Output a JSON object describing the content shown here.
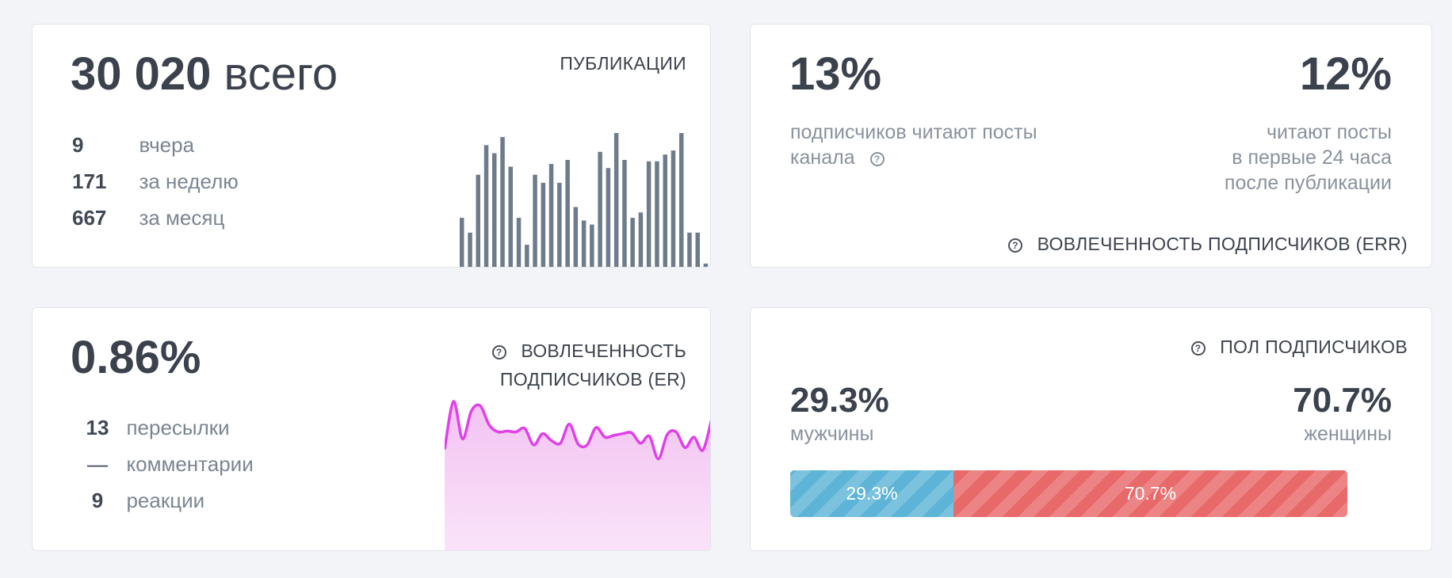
{
  "publications": {
    "total_value": "30 020",
    "total_suffix": "всего",
    "title": "ПУБЛИКАЦИИ",
    "stats": [
      {
        "value": "9",
        "label": "вчера"
      },
      {
        "value": "171",
        "label": "за неделю"
      },
      {
        "value": "667",
        "label": "за месяц"
      }
    ],
    "bar_color": "#6e7b8c"
  },
  "err": {
    "left_value": "13%",
    "left_text_line1": "подписчиков читают посты",
    "left_text_line2": "канала",
    "right_value": "12%",
    "right_text_line1": "читают посты",
    "right_text_line2": "в первые 24 часа",
    "right_text_line3": "после публикации",
    "title": "ВОВЛЕЧЕННОСТЬ ПОДПИСЧИКОВ (ERR)",
    "help_icon": "question-circle-icon"
  },
  "er": {
    "value": "0.86%",
    "title_line1": "ВОВЛЕЧЕННОСТЬ",
    "title_line2": "ПОДПИСЧИКОВ (ER)",
    "stats": [
      {
        "value": "13",
        "label": "пересылки"
      },
      {
        "value": "—",
        "label": "комментарии"
      },
      {
        "value": "9",
        "label": "реакции"
      }
    ],
    "line_color": "#e040e8",
    "fill_color": "#f3c2f2"
  },
  "gender": {
    "title": "ПОЛ ПОДПИСЧИКОВ",
    "male_value": "29.3%",
    "male_label": "мужчины",
    "female_value": "70.7%",
    "female_label": "женщины",
    "male_bar_label": "29.3%",
    "female_bar_label": "70.7%",
    "male_share": 0.293,
    "female_share": 0.707,
    "male_color": "#5db4d6",
    "female_color": "#e8696a"
  },
  "chart_data": [
    {
      "type": "bar",
      "values": [
        0.37,
        0.26,
        0.69,
        0.91,
        0.85,
        0.97,
        0.75,
        0.37,
        0.17,
        0.69,
        0.63,
        0.77,
        0.63,
        0.8,
        0.45,
        0.35,
        0.32,
        0.86,
        0.74,
        1.0,
        0.8,
        0.37,
        0.41,
        0.79,
        0.79,
        0.84,
        0.87,
        1.0,
        0.26,
        0.26,
        0.03
      ]
    },
    {
      "type": "area",
      "values": [
        0.45,
        1.0,
        0.57,
        0.89,
        0.95,
        0.73,
        0.65,
        0.66,
        0.65,
        0.69,
        0.5,
        0.63,
        0.55,
        0.52,
        0.74,
        0.51,
        0.5,
        0.7,
        0.59,
        0.61,
        0.63,
        0.64,
        0.52,
        0.6,
        0.34,
        0.62,
        0.65,
        0.47,
        0.59,
        0.44,
        0.8
      ]
    }
  ]
}
